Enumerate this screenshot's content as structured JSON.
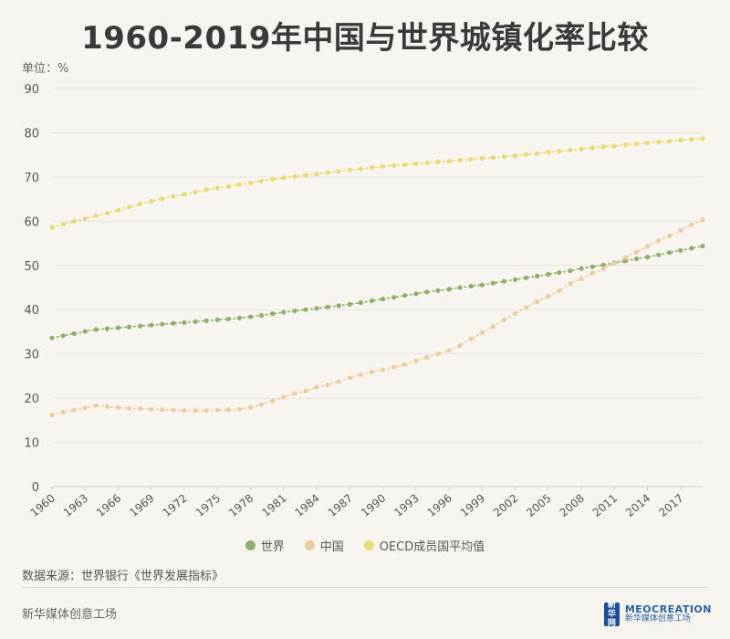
{
  "page": {
    "title": "1960-2019年中国与世界城镇化率比较",
    "unit_label": "单位：%",
    "source": "数据来源：世界银行《世界发展指标》",
    "footer_left": "新华媒体创意工场",
    "logo_news_text": "新华网",
    "logo_meo_text": "MEOCREATION",
    "logo_meo_sub": "新华媒体创意工场"
  },
  "colors": {
    "world": "#8fb06a",
    "china": "#ebcd9f",
    "oecd": "#e6dc73",
    "grid": "#e6e2dc",
    "axis_text": "#555555"
  },
  "chart_data": {
    "type": "line",
    "title": "1960-2019年中国与世界城镇化率比较",
    "xlabel": "",
    "ylabel": "单位：%",
    "ylim": [
      0,
      90
    ],
    "yticks": [
      0,
      10,
      20,
      30,
      40,
      50,
      60,
      70,
      80,
      90
    ],
    "xlim": [
      1960,
      2019
    ],
    "xticks": [
      1960,
      1963,
      1966,
      1969,
      1972,
      1975,
      1978,
      1981,
      1984,
      1987,
      1990,
      1993,
      1996,
      1999,
      2002,
      2005,
      2008,
      2011,
      2014,
      2017
    ],
    "grid": true,
    "legend_position": "bottom",
    "x": [
      1960,
      1961,
      1962,
      1963,
      1964,
      1965,
      1966,
      1967,
      1968,
      1969,
      1970,
      1971,
      1972,
      1973,
      1974,
      1975,
      1976,
      1977,
      1978,
      1979,
      1980,
      1981,
      1982,
      1983,
      1984,
      1985,
      1986,
      1987,
      1988,
      1989,
      1990,
      1991,
      1992,
      1993,
      1994,
      1995,
      1996,
      1997,
      1998,
      1999,
      2000,
      2001,
      2002,
      2003,
      2004,
      2005,
      2006,
      2007,
      2008,
      2009,
      2010,
      2011,
      2012,
      2013,
      2014,
      2015,
      2016,
      2017,
      2018,
      2019
    ],
    "series": [
      {
        "name": "世界",
        "color_key": "world",
        "values": [
          33.6,
          34.1,
          34.6,
          35.1,
          35.5,
          35.7,
          35.9,
          36.1,
          36.3,
          36.5,
          36.7,
          36.9,
          37.1,
          37.3,
          37.5,
          37.7,
          37.9,
          38.1,
          38.4,
          38.7,
          39.1,
          39.4,
          39.7,
          40.0,
          40.3,
          40.6,
          40.9,
          41.2,
          41.6,
          42.0,
          42.4,
          42.8,
          43.2,
          43.6,
          44.0,
          44.3,
          44.6,
          45.0,
          45.3,
          45.6,
          46.0,
          46.4,
          46.8,
          47.2,
          47.6,
          48.0,
          48.4,
          48.8,
          49.3,
          49.7,
          50.1,
          50.6,
          51.0,
          51.5,
          51.9,
          52.4,
          52.9,
          53.4,
          53.9,
          54.4
        ]
      },
      {
        "name": "中国",
        "color_key": "china",
        "values": [
          16.2,
          16.8,
          17.3,
          17.8,
          18.3,
          18.1,
          17.9,
          17.7,
          17.6,
          17.5,
          17.4,
          17.3,
          17.2,
          17.2,
          17.2,
          17.3,
          17.4,
          17.5,
          17.9,
          18.6,
          19.4,
          20.2,
          21.1,
          21.6,
          22.5,
          23.0,
          23.7,
          24.6,
          25.3,
          25.9,
          26.4,
          27.0,
          27.6,
          28.4,
          29.2,
          30.0,
          30.8,
          31.9,
          33.4,
          34.8,
          36.2,
          37.7,
          39.1,
          40.5,
          41.8,
          43.0,
          44.3,
          45.9,
          47.0,
          48.3,
          49.2,
          50.5,
          51.8,
          53.0,
          54.3,
          55.6,
          56.7,
          57.9,
          59.2,
          60.3
        ]
      },
      {
        "name": "OECD成员国平均值",
        "color_key": "oecd",
        "values": [
          58.6,
          59.3,
          60.0,
          60.6,
          61.2,
          61.8,
          62.5,
          63.2,
          63.9,
          64.5,
          65.1,
          65.6,
          66.1,
          66.6,
          67.1,
          67.5,
          67.9,
          68.3,
          68.7,
          69.1,
          69.5,
          69.8,
          70.1,
          70.4,
          70.7,
          71.0,
          71.3,
          71.6,
          71.8,
          72.1,
          72.4,
          72.6,
          72.8,
          73.0,
          73.2,
          73.4,
          73.6,
          73.8,
          74.0,
          74.2,
          74.4,
          74.6,
          74.8,
          75.1,
          75.3,
          75.6,
          75.8,
          76.1,
          76.3,
          76.6,
          76.8,
          77.0,
          77.3,
          77.5,
          77.7,
          77.9,
          78.1,
          78.3,
          78.5,
          78.7
        ]
      }
    ]
  }
}
